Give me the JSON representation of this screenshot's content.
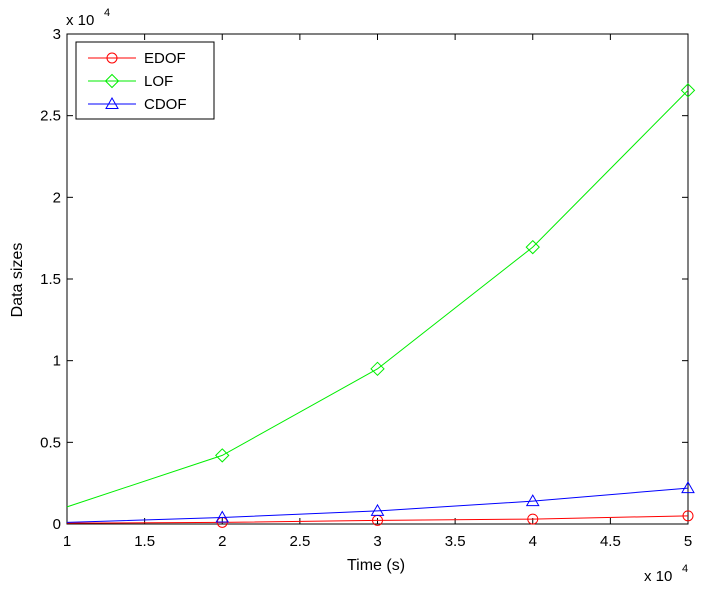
{
  "chart_data": {
    "type": "line",
    "xlabel": "Time (s)",
    "ylabel": "Data sizes",
    "x_multiplier": "x 10",
    "x_multiplier_exp": "4",
    "y_multiplier": "x 10",
    "y_multiplier_exp": "4",
    "xlim": [
      1,
      5
    ],
    "ylim": [
      0,
      3
    ],
    "x_ticks": [
      "1",
      "1.5",
      "2",
      "2.5",
      "3",
      "3.5",
      "4",
      "4.5",
      "5"
    ],
    "y_ticks": [
      "0",
      "0.5",
      "1",
      "1.5",
      "2",
      "2.5",
      "3"
    ],
    "grid": false,
    "legend_position": "top-left",
    "series": [
      {
        "name": "EDOF",
        "color": "#ff0000",
        "marker": "circle",
        "x": [
          1,
          2,
          3,
          4,
          5
        ],
        "y": [
          0.005,
          0.01,
          0.022,
          0.03,
          0.05
        ]
      },
      {
        "name": "LOF",
        "color": "#00ee00",
        "marker": "diamond",
        "x": [
          1,
          2,
          3,
          4,
          5
        ],
        "y": [
          0.105,
          0.42,
          0.95,
          1.695,
          2.655
        ]
      },
      {
        "name": "CDOF",
        "color": "#0000ff",
        "marker": "triangle",
        "x": [
          1,
          2,
          3,
          4,
          5
        ],
        "y": [
          0.01,
          0.04,
          0.08,
          0.14,
          0.22
        ]
      }
    ]
  }
}
